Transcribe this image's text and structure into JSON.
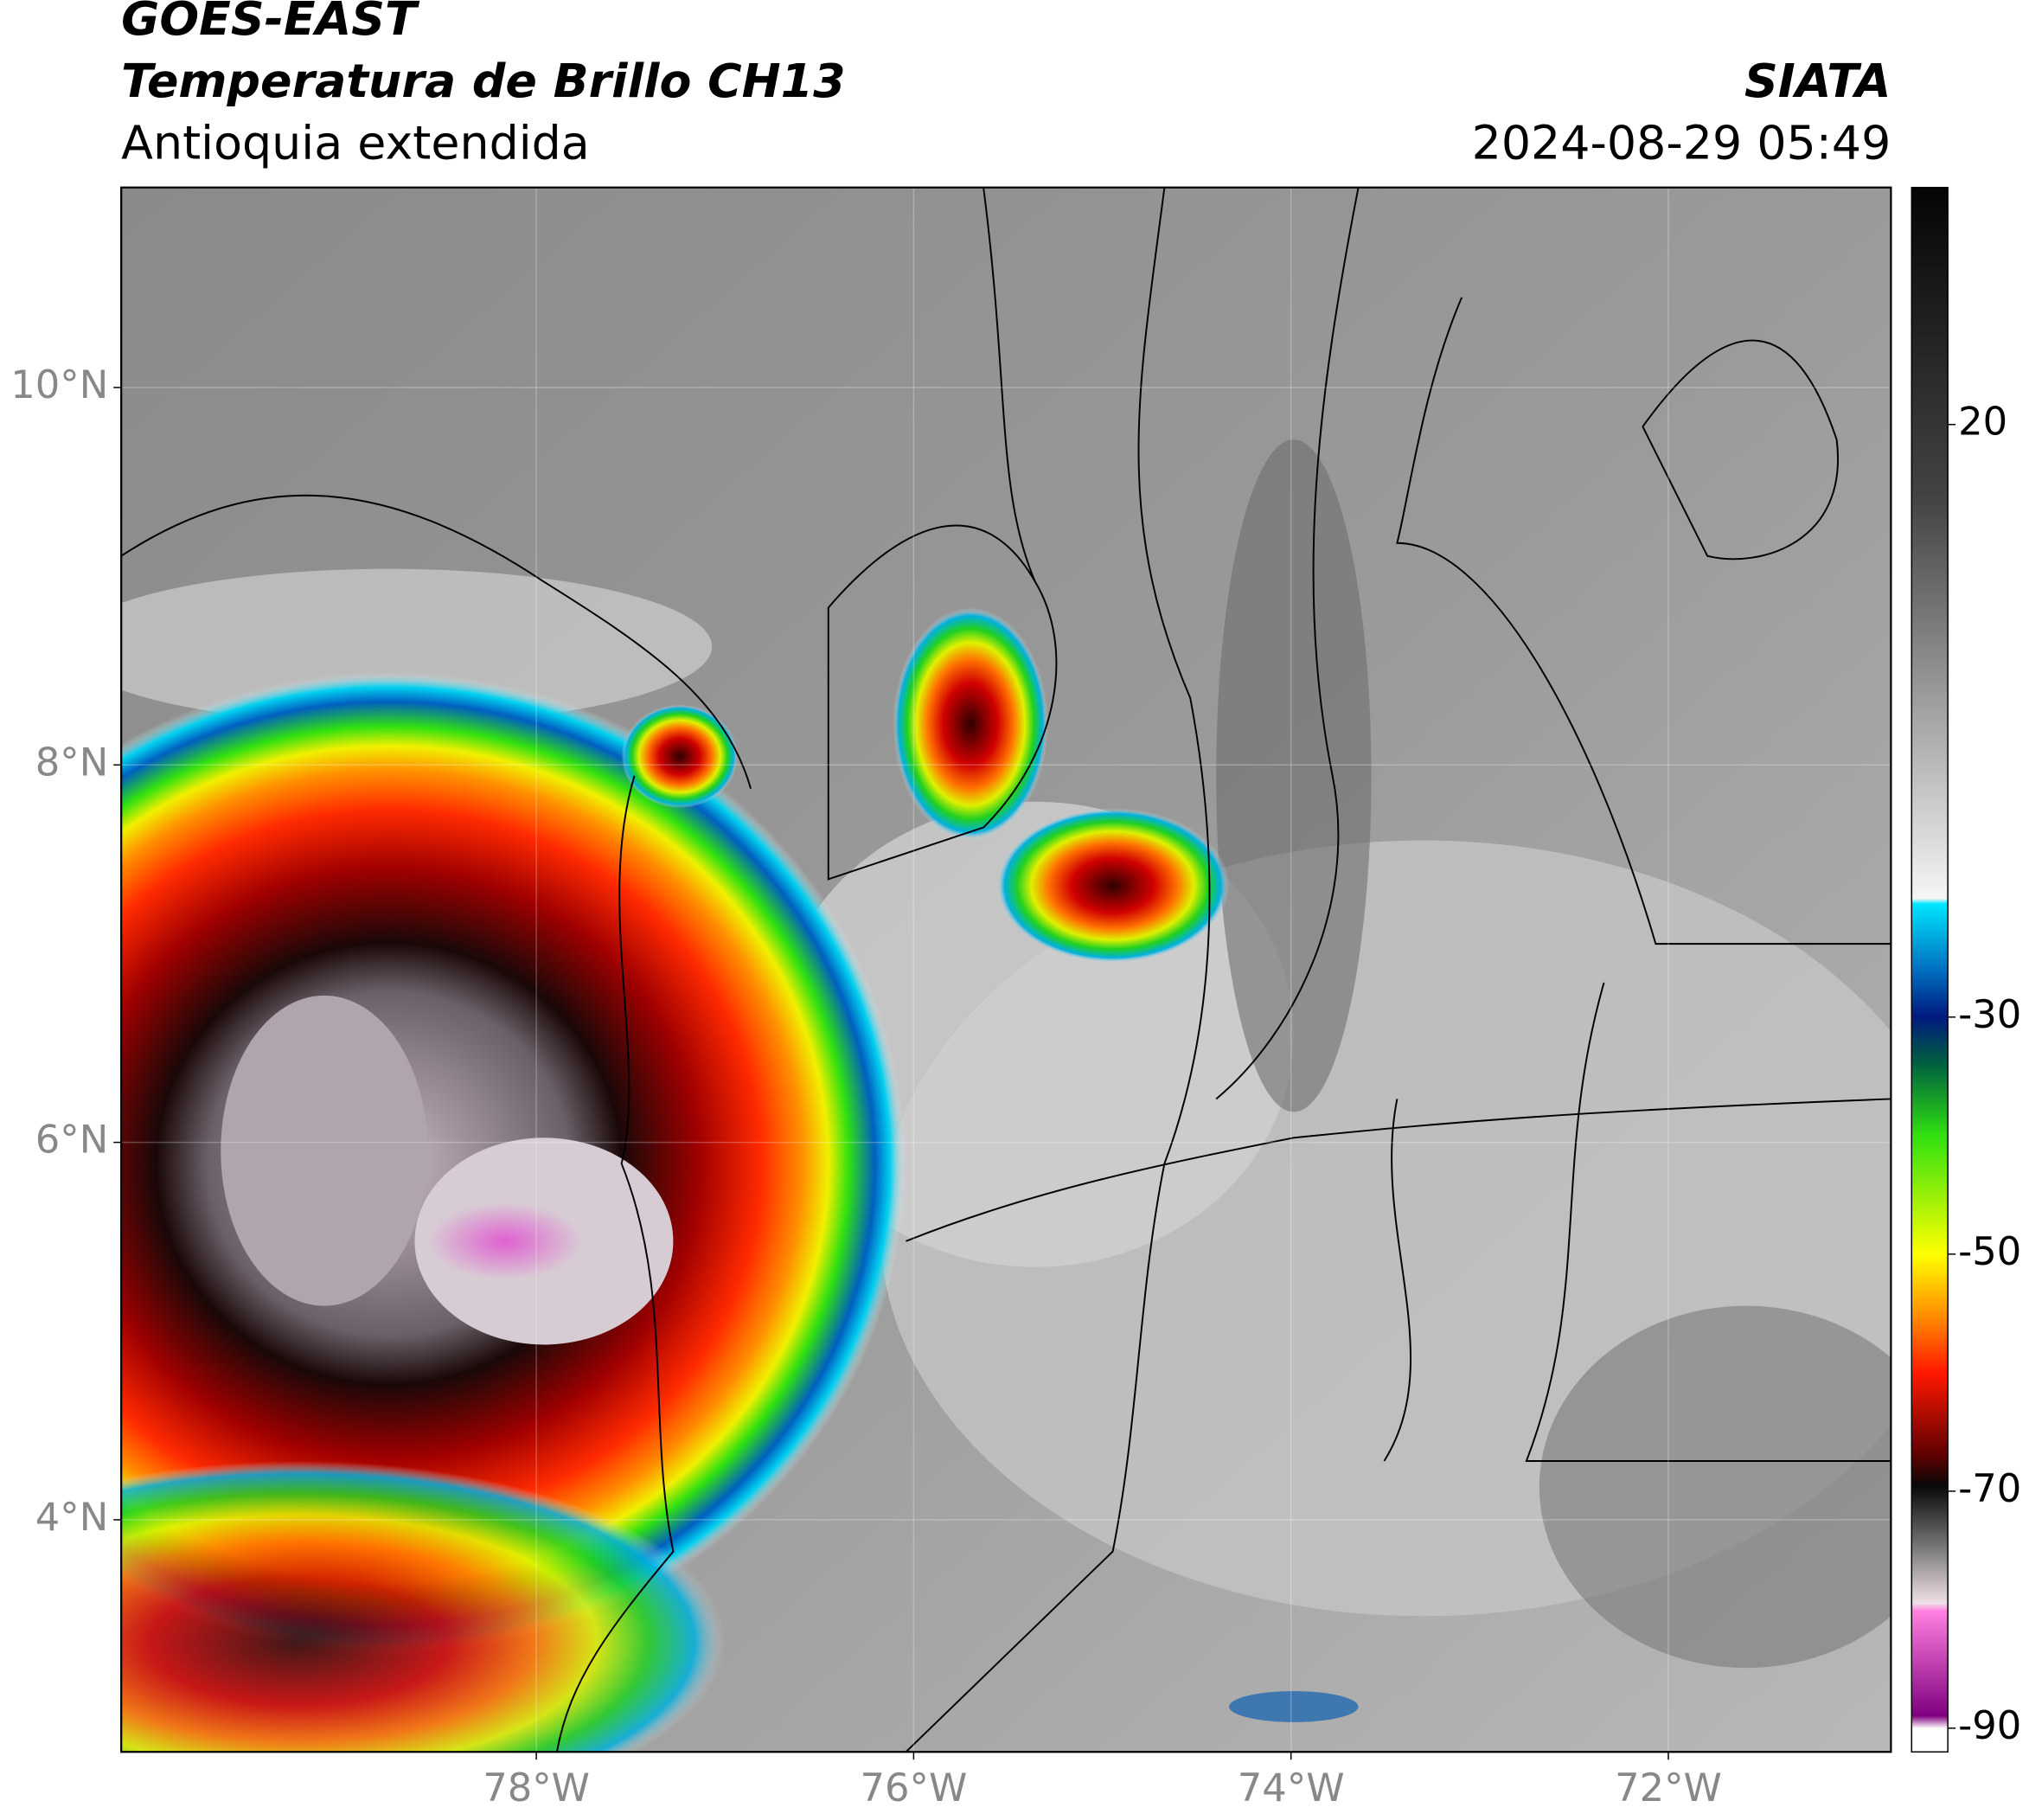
{
  "header": {
    "title_line1": "GOES-EAST",
    "title_line2": "Temperatura de Brillo CH13",
    "subtitle": "Antioquia extendida",
    "source": "SIATA",
    "datetime": "2024-08-29 05:49"
  },
  "chart_data": {
    "type": "map",
    "xlim": [
      -80.2,
      -70.82
    ],
    "ylim": [
      2.77,
      11.06
    ],
    "xticks": [
      {
        "value": -78,
        "label": "78°W"
      },
      {
        "value": -76,
        "label": "76°W"
      },
      {
        "value": -74,
        "label": "74°W"
      },
      {
        "value": -72,
        "label": "72°W"
      }
    ],
    "yticks": [
      {
        "value": 10,
        "label": "10°N"
      },
      {
        "value": 8,
        "label": "8°N"
      },
      {
        "value": 6,
        "label": "6°N"
      },
      {
        "value": 4,
        "label": "4°N"
      }
    ],
    "grid": true,
    "colorbar": {
      "lim": [
        -92,
        40
      ],
      "ticks": [
        20,
        -30,
        -50,
        -70,
        -90
      ]
    }
  }
}
